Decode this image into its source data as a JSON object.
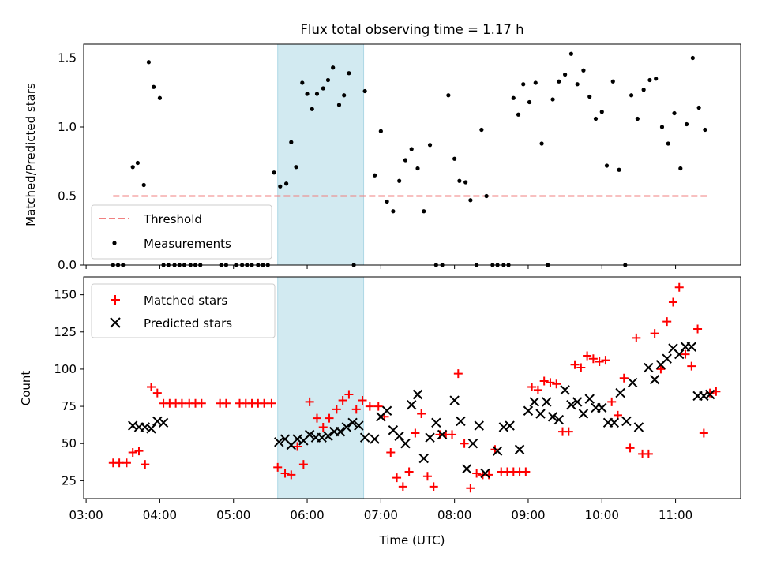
{
  "title": "Flux total observing time = 1.17 h",
  "colors": {
    "threshold": "#f08080",
    "measurements": "#000000",
    "matched": "#ff0000",
    "predicted": "#000000",
    "shade": "#add8e6"
  },
  "chart_data": [
    {
      "type": "scatter",
      "ylabel": "Matched/Predicted stars",
      "ylim": [
        0,
        1.6
      ],
      "yticks": [
        0,
        0.5,
        1.0,
        1.5
      ],
      "ytick_labels": [
        "0.0",
        "0.5",
        "1.0",
        "1.5"
      ],
      "shaded_x_range": [
        "05:36",
        "06:46"
      ],
      "legend": {
        "position": "lower-left",
        "entries": [
          "Threshold",
          "Measurements"
        ]
      },
      "threshold": {
        "name": "Threshold",
        "x_range": [
          "03:22",
          "11:27"
        ],
        "y": 0.5
      },
      "series": [
        {
          "name": "Measurements",
          "x": [
            "03:22",
            "03:26",
            "03:30",
            "03:38",
            "03:42",
            "03:47",
            "03:51",
            "03:55",
            "04:00",
            "04:03",
            "04:07",
            "04:12",
            "04:16",
            "04:20",
            "04:25",
            "04:29",
            "04:33",
            "04:50",
            "04:54",
            "05:02",
            "05:07",
            "05:11",
            "05:15",
            "05:20",
            "05:24",
            "05:28",
            "05:33",
            "05:38",
            "05:43",
            "05:47",
            "05:51",
            "05:56",
            "06:00",
            "06:04",
            "06:08",
            "06:13",
            "06:17",
            "06:21",
            "06:26",
            "06:30",
            "06:34",
            "06:38",
            "06:47",
            "06:55",
            "07:00",
            "07:05",
            "07:10",
            "07:15",
            "07:20",
            "07:25",
            "07:30",
            "07:35",
            "07:40",
            "07:45",
            "07:50",
            "07:55",
            "08:00",
            "08:04",
            "08:09",
            "08:13",
            "08:18",
            "08:22",
            "08:26",
            "08:31",
            "08:35",
            "08:40",
            "08:44",
            "08:48",
            "08:52",
            "08:56",
            "09:01",
            "09:06",
            "09:11",
            "09:16",
            "09:20",
            "09:25",
            "09:30",
            "09:35",
            "09:40",
            "09:45",
            "09:50",
            "09:55",
            "10:00",
            "10:04",
            "10:09",
            "10:14",
            "10:19",
            "10:24",
            "10:29",
            "10:34",
            "10:39",
            "10:44",
            "10:49",
            "10:54",
            "10:59",
            "11:04",
            "11:09",
            "11:14",
            "11:19",
            "11:24"
          ],
          "y": [
            0,
            0,
            0,
            0.71,
            0.74,
            0.58,
            1.47,
            1.29,
            1.21,
            0,
            0,
            0,
            0,
            0,
            0,
            0,
            0,
            0,
            0,
            0,
            0,
            0,
            0,
            0,
            0,
            0,
            0.67,
            0.57,
            0.59,
            0.89,
            0.71,
            1.32,
            1.24,
            1.13,
            1.24,
            1.28,
            1.34,
            1.43,
            1.16,
            1.23,
            1.39,
            0,
            1.26,
            0.65,
            0.97,
            0.46,
            0.39,
            0.61,
            0.76,
            0.84,
            0.7,
            0.39,
            0.87,
            0,
            0,
            1.23,
            0.77,
            0.61,
            0.6,
            0.47,
            0,
            0.98,
            0.5,
            0,
            0,
            0,
            0,
            1.21,
            1.09,
            1.31,
            1.18,
            1.32,
            0.88,
            0,
            1.2,
            1.33,
            1.38,
            1.53,
            1.31,
            1.41,
            1.22,
            1.06,
            1.11,
            0.72,
            1.33,
            0.69,
            0,
            1.23,
            1.06,
            1.27,
            1.34,
            1.35,
            1.0,
            0.88,
            1.1,
            0.7,
            1.02,
            1.5,
            1.14,
            0.98
          ]
        }
      ]
    },
    {
      "type": "scatter",
      "xlabel": "Time (UTC)",
      "ylabel": "Count",
      "ylim": [
        13,
        162
      ],
      "yticks": [
        25,
        50,
        75,
        100,
        125,
        150
      ],
      "xlim": [
        "02:58",
        "11:53"
      ],
      "xticks": [
        "03:00",
        "04:00",
        "05:00",
        "06:00",
        "07:00",
        "08:00",
        "09:00",
        "10:00",
        "11:00"
      ],
      "shaded_x_range": [
        "05:36",
        "06:46"
      ],
      "legend": {
        "position": "upper-left",
        "entries": [
          "Matched stars",
          "Predicted stars"
        ]
      },
      "series": [
        {
          "name": "Matched stars",
          "x": [
            "03:22",
            "03:27",
            "03:33",
            "03:38",
            "03:43",
            "03:48",
            "03:53",
            "03:58",
            "04:03",
            "04:08",
            "04:13",
            "04:18",
            "04:24",
            "04:29",
            "04:34",
            "04:49",
            "04:54",
            "05:05",
            "05:10",
            "05:15",
            "05:20",
            "05:25",
            "05:31",
            "05:36",
            "05:42",
            "05:47",
            "05:52",
            "05:57",
            "06:02",
            "06:08",
            "06:13",
            "06:18",
            "06:24",
            "06:29",
            "06:34",
            "06:40",
            "06:45",
            "06:51",
            "06:58",
            "07:03",
            "07:08",
            "07:13",
            "07:18",
            "07:23",
            "07:28",
            "07:33",
            "07:38",
            "07:43",
            "07:48",
            "07:53",
            "07:58",
            "08:03",
            "08:08",
            "08:13",
            "08:18",
            "08:23",
            "08:28",
            "08:33",
            "08:38",
            "08:43",
            "08:48",
            "08:53",
            "08:58",
            "09:03",
            "09:08",
            "09:13",
            "09:18",
            "09:23",
            "09:28",
            "09:33",
            "09:38",
            "09:43",
            "09:48",
            "09:53",
            "09:58",
            "10:03",
            "10:08",
            "10:13",
            "10:18",
            "10:23",
            "10:28",
            "10:33",
            "10:38",
            "10:43",
            "10:48",
            "10:53",
            "10:58",
            "11:03",
            "11:08",
            "11:13",
            "11:18",
            "11:23",
            "11:28",
            "11:33"
          ],
          "y": [
            37,
            37,
            37,
            44,
            45,
            36,
            88,
            84,
            77,
            77,
            77,
            77,
            77,
            77,
            77,
            77,
            77,
            77,
            77,
            77,
            77,
            77,
            77,
            34,
            30,
            29,
            48,
            36,
            78,
            67,
            61,
            67,
            73,
            79,
            83,
            73,
            79,
            75,
            75,
            68,
            44,
            27,
            21,
            31,
            57,
            70,
            28,
            21,
            56,
            56,
            56,
            97,
            50,
            20,
            30,
            29,
            29,
            46,
            31,
            31,
            31,
            31,
            31,
            88,
            86,
            92,
            91,
            90,
            58,
            58,
            103,
            101,
            109,
            107,
            105,
            106,
            78,
            69,
            94,
            47,
            121,
            43,
            43,
            124,
            100,
            132,
            145,
            155,
            110,
            102,
            127,
            57,
            84,
            85
          ]
        },
        {
          "name": "Predicted stars",
          "x": [
            "03:38",
            "03:43",
            "03:48",
            "03:53",
            "03:58",
            "04:03",
            "05:37",
            "05:42",
            "05:47",
            "05:52",
            "05:57",
            "06:02",
            "06:07",
            "06:12",
            "06:17",
            "06:22",
            "06:27",
            "06:32",
            "06:37",
            "06:42",
            "06:47",
            "06:55",
            "07:00",
            "07:05",
            "07:10",
            "07:15",
            "07:20",
            "07:25",
            "07:30",
            "07:35",
            "07:40",
            "07:45",
            "07:50",
            "08:00",
            "08:05",
            "08:10",
            "08:15",
            "08:20",
            "08:25",
            "08:35",
            "08:40",
            "08:45",
            "08:53",
            "09:00",
            "09:05",
            "09:10",
            "09:15",
            "09:20",
            "09:25",
            "09:30",
            "09:35",
            "09:40",
            "09:45",
            "09:50",
            "09:55",
            "10:00",
            "10:05",
            "10:10",
            "10:15",
            "10:20",
            "10:25",
            "10:30",
            "10:38",
            "10:43",
            "10:48",
            "10:53",
            "10:58",
            "11:03",
            "11:08",
            "11:13",
            "11:18",
            "11:23",
            "11:28"
          ],
          "y": [
            62,
            61,
            61,
            60,
            65,
            64,
            51,
            53,
            49,
            53,
            52,
            56,
            54,
            54,
            55,
            58,
            58,
            61,
            64,
            62,
            54,
            53,
            68,
            72,
            59,
            55,
            50,
            76,
            83,
            40,
            54,
            64,
            56,
            79,
            65,
            33,
            50,
            62,
            30,
            45,
            61,
            62,
            46,
            72,
            78,
            70,
            78,
            68,
            66,
            86,
            76,
            78,
            70,
            80,
            74,
            74,
            64,
            64,
            84,
            65,
            91,
            61,
            101,
            93,
            103,
            107,
            114,
            110,
            115,
            115,
            82,
            82,
            83
          ]
        }
      ]
    }
  ]
}
